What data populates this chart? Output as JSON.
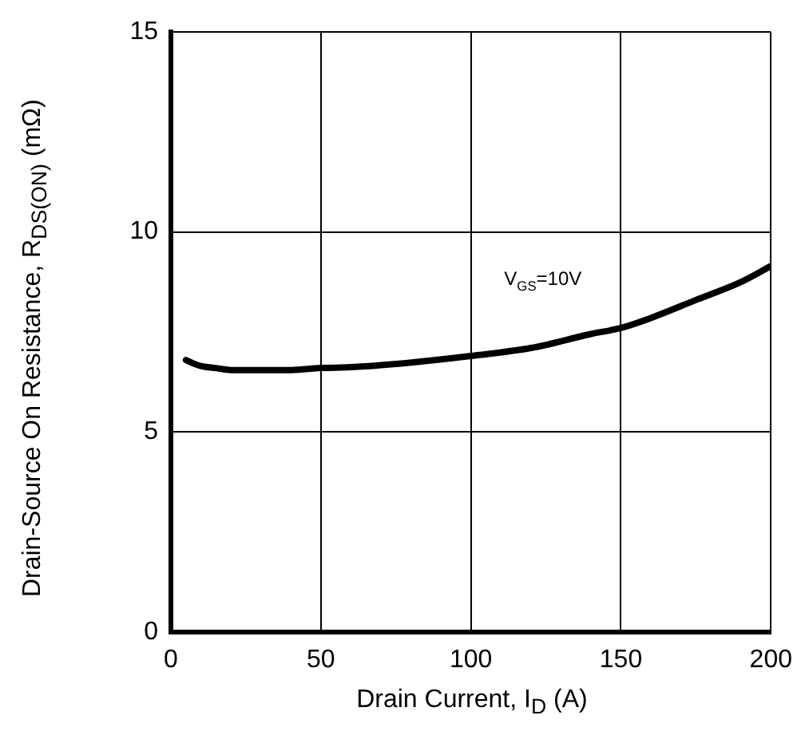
{
  "chart_data": {
    "type": "line",
    "xlabel": "Drain Current, I$_{D}$ (A)",
    "ylabel": "Drain-Source On Resistance, R$_{DS(ON)}$ (mΩ)",
    "x": [
      5,
      8,
      10,
      15,
      20,
      30,
      40,
      50,
      60,
      75,
      100,
      120,
      140,
      150,
      160,
      175,
      190,
      200
    ],
    "series": [
      {
        "name": "V$_{GS}$=10V",
        "color": "#000000",
        "values": [
          6.8,
          6.7,
          6.65,
          6.6,
          6.55,
          6.55,
          6.55,
          6.6,
          6.62,
          6.7,
          6.9,
          7.1,
          7.45,
          7.6,
          7.85,
          8.3,
          8.75,
          9.15
        ]
      }
    ],
    "xlim": [
      0,
      200
    ],
    "xticks": [
      0,
      50,
      100,
      150,
      200
    ],
    "ylim": [
      0,
      15
    ],
    "yticks": [
      0,
      5,
      10,
      15
    ],
    "grid": true,
    "legend": false,
    "marker": "none",
    "line_style": "solid"
  }
}
